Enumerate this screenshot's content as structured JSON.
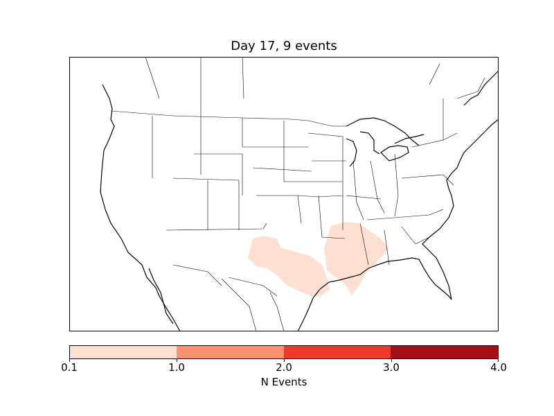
{
  "title": "Day 17, 9 events",
  "map": {
    "region": "North America (contiguous United States)",
    "event_density_color": "#fee0d2",
    "event_areas": [
      "Texas / Oklahoma",
      "Mississippi / Alabama / Louisiana"
    ]
  },
  "colorbar": {
    "label": "N Events",
    "ticks": [
      "0.1",
      "1.0",
      "2.0",
      "3.0",
      "4.0"
    ],
    "colors": [
      "#fee0d2",
      "#fc9272",
      "#ef3b2c",
      "#a50f15"
    ]
  }
}
